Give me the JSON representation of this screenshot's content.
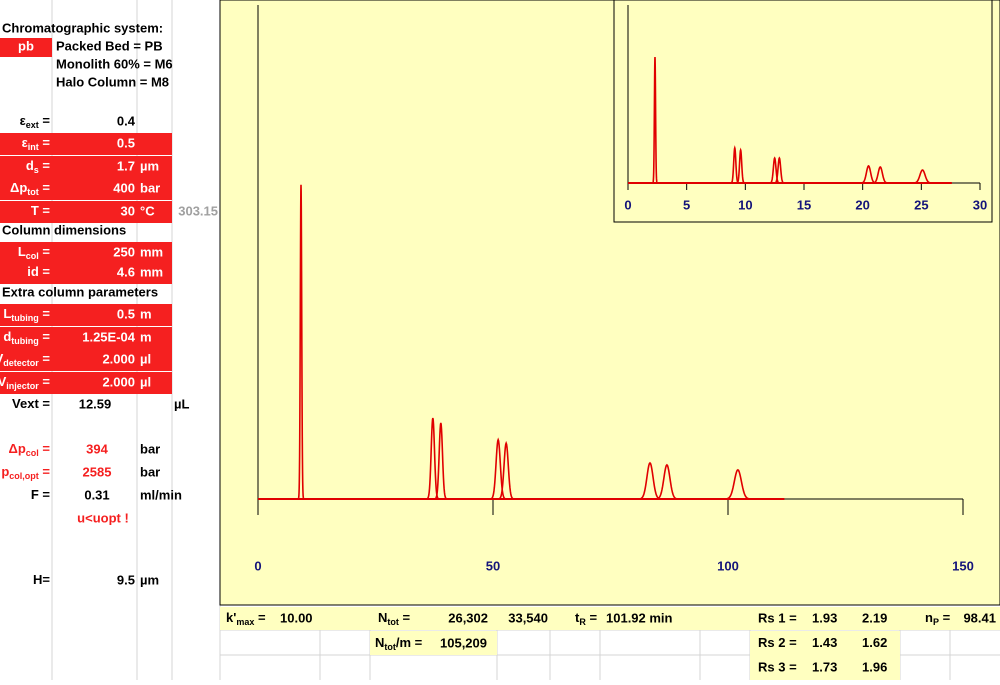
{
  "sheet": {
    "heading": "Chromatographic system:",
    "system_code": "pb",
    "system_options": [
      "Packed Bed = PB",
      "Monolith 60% = M6",
      "Halo Column = M8"
    ],
    "params": [
      {
        "label": "ε",
        "sub": "ext",
        "eq": " =",
        "value": "0.4"
      },
      {
        "label": "ε",
        "sub": "int",
        "eq": " =",
        "value": "0.5",
        "fill": true
      },
      {
        "label": "d",
        "sub": "s",
        "eq": " =",
        "value": "1.7",
        "unit": "µm",
        "fill": true
      },
      {
        "label": "Δp",
        "sub": "tot",
        "eq": " =",
        "value": "400",
        "unit": "bar",
        "fill": true
      },
      {
        "label": "T =",
        "value": "30",
        "unit": "°C",
        "fill": true,
        "note": "303.15"
      },
      {
        "header": "Column dimensions"
      },
      {
        "label": "L",
        "sub": "col",
        "eq": " =",
        "value": "250",
        "unit": "mm",
        "fill": true
      },
      {
        "label": "id =",
        "value": "4.6",
        "unit": "mm",
        "fill": true
      },
      {
        "header": "Extra column parameters"
      },
      {
        "label": "L",
        "sub": "tubing",
        "eq": " =",
        "value": "0.5",
        "unit": "m",
        "fill": true
      },
      {
        "label": "d",
        "sub": "tubing",
        "eq": " =",
        "value": "1.25E-04",
        "unit": "m",
        "fill": true
      },
      {
        "label": "V",
        "sub": "detector",
        "eq": " =",
        "value": "2.000",
        "unit": "µl",
        "fill": true
      },
      {
        "label": "V",
        "sub": "injector",
        "eq": " =",
        "value": "2.000",
        "unit": "µl",
        "fill": true
      },
      {
        "label": "Vext =",
        "value": "12.59",
        "unit": "µL"
      },
      {
        "label": "Δp",
        "sub": "col",
        "eq": " =",
        "value": "394",
        "unit": "bar",
        "alert": true
      },
      {
        "label": "p",
        "sub": "col,opt",
        "eq": " =",
        "value": "2585",
        "unit": "bar",
        "alert": true
      },
      {
        "label": "F =",
        "value": "0.31",
        "unit": "ml/min"
      },
      {
        "warning": "u<uopt !"
      },
      {
        "label": "H=",
        "value": "9.5",
        "unit": "µm"
      }
    ]
  },
  "results": {
    "kmax": {
      "label": "k'",
      "sub": "max",
      "eq": " =",
      "value": "10.00"
    },
    "ntot": {
      "label": "N",
      "sub": "tot",
      "eq": " =",
      "value": "26,302",
      "alt": "33,540"
    },
    "tr": {
      "label": "t",
      "sub": "R",
      "eq": " =",
      "value": "101.92 min"
    },
    "ntot_m": {
      "label": "N",
      "sub": "tot",
      "eq": "/m =",
      "value": "105,209"
    },
    "np": {
      "label": "n",
      "sub": "P",
      "eq": " =",
      "value": "98.41"
    },
    "rs": [
      {
        "label": "Rs 1 =",
        "value": "1.93",
        "alt": "2.19"
      },
      {
        "label": "Rs 2 =",
        "value": "1.43",
        "alt": "1.62"
      },
      {
        "label": "Rs 3 =",
        "value": "1.73",
        "alt": "1.96"
      }
    ]
  },
  "chart_data": [
    {
      "type": "chromatogram",
      "color": "#e00000",
      "xlim": [
        0,
        150
      ],
      "xticks": [
        0,
        50,
        100,
        150
      ],
      "ylim": [
        0,
        100
      ],
      "trace_range": [
        0,
        112
      ],
      "peaks": {
        "x": [
          9.15,
          37.2,
          38.9,
          51.1,
          52.8,
          83.4,
          87.0,
          102.1
        ],
        "heights": [
          63.6,
          16.4,
          15.4,
          12,
          11.3,
          7.3,
          6.9,
          5.9
        ],
        "widths": [
          0.15,
          0.35,
          0.35,
          0.45,
          0.45,
          0.65,
          0.65,
          0.75
        ]
      }
    },
    {
      "type": "chromatogram",
      "color": "#e00000",
      "xlim": [
        0,
        30
      ],
      "xticks": [
        0,
        5,
        10,
        15,
        20,
        25,
        30
      ],
      "ylim": [
        0,
        100
      ],
      "trace_range": [
        0,
        27.6
      ],
      "peaks": {
        "x": [
          2.3,
          9.1,
          9.6,
          12.5,
          12.9,
          20.5,
          21.5,
          25.1
        ],
        "heights": [
          70.8,
          19.7,
          18.5,
          14,
          14,
          9.6,
          9,
          7.3
        ],
        "widths": [
          0.05,
          0.09,
          0.09,
          0.11,
          0.11,
          0.18,
          0.18,
          0.22
        ]
      }
    }
  ]
}
